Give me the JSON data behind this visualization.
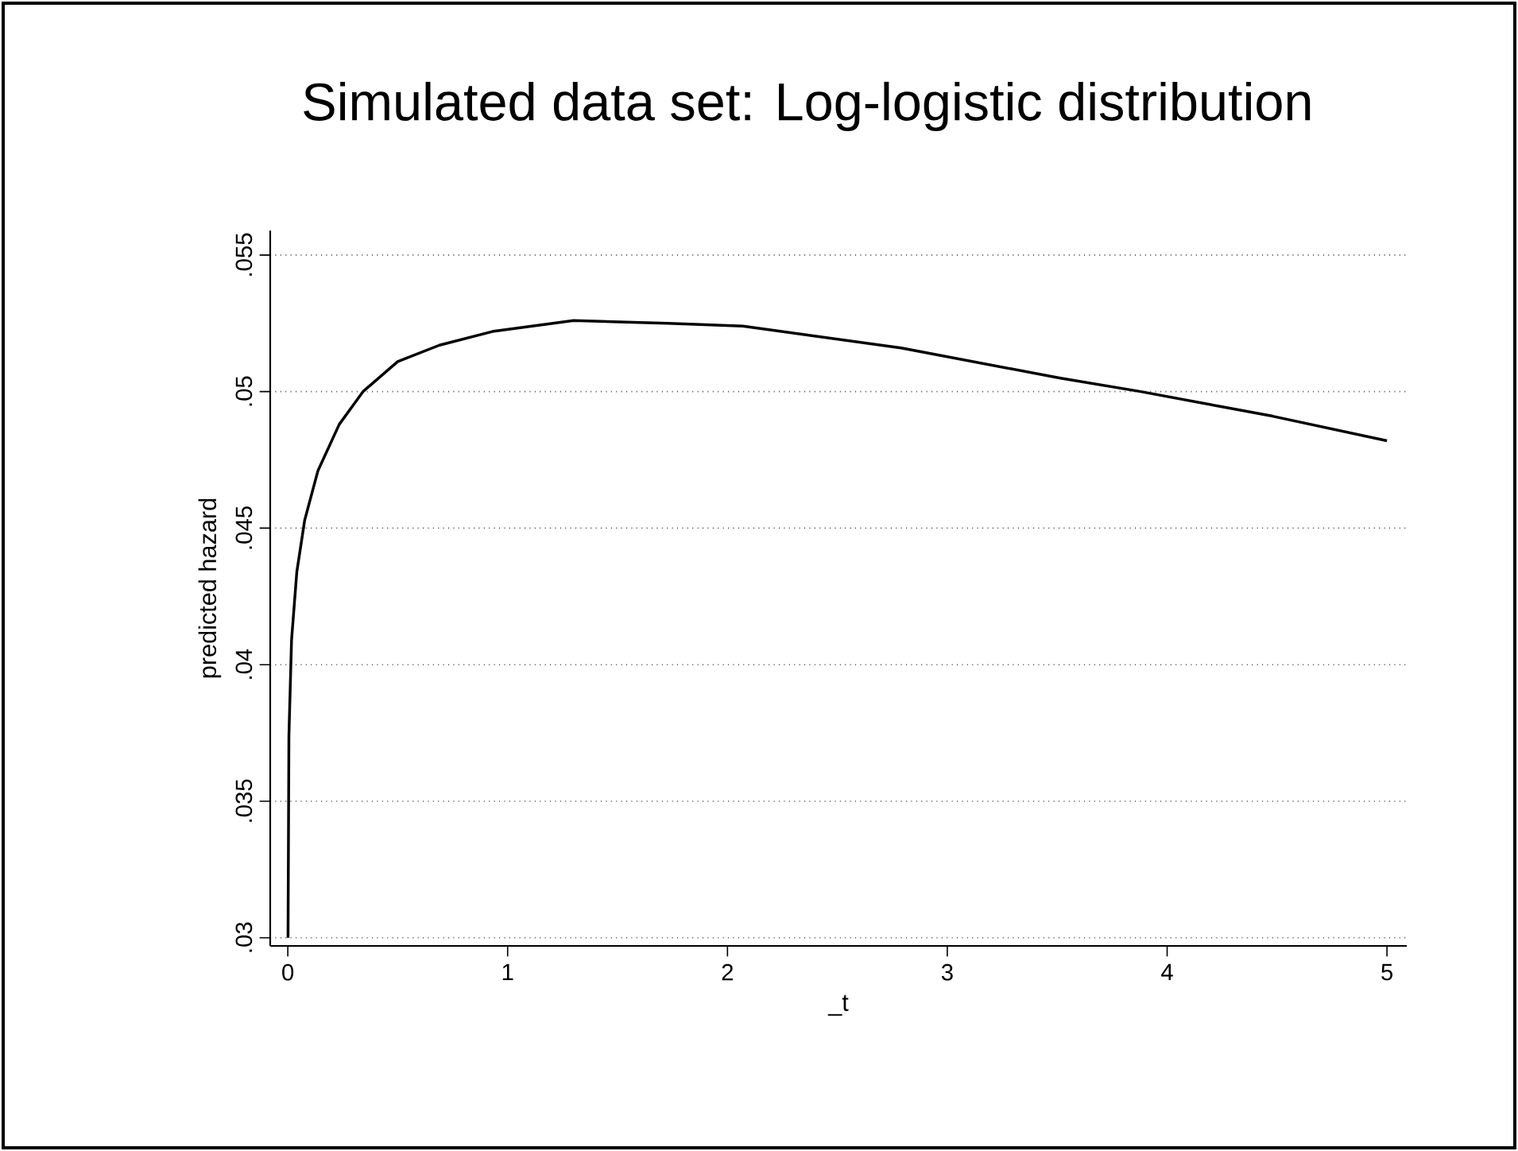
{
  "chart_data": {
    "type": "line",
    "title": "Simulated data set: Log-logistic distribution",
    "xlabel": "_t",
    "ylabel": "predicted hazard",
    "x": [
      0.001,
      0.005,
      0.017,
      0.041,
      0.077,
      0.137,
      0.234,
      0.342,
      0.5,
      0.69,
      0.93,
      1.3,
      1.73,
      2.07,
      2.79,
      3.51,
      3.88,
      4.48,
      5.0
    ],
    "series": [
      {
        "color": "#000000",
        "values": [
          0.03,
          0.0374,
          0.0409,
          0.0434,
          0.0453,
          0.0471,
          0.0488,
          0.05,
          0.0511,
          0.0517,
          0.0522,
          0.0526,
          0.0525,
          0.0524,
          0.0516,
          0.0505,
          0.05,
          0.0491,
          0.0482
        ]
      }
    ],
    "xlim": [
      -0.08,
      5.09
    ],
    "ylim": [
      0.0297,
      0.0559
    ],
    "xticks": [
      0,
      1,
      2,
      3,
      4,
      5
    ],
    "yticks": [
      {
        "value": 0.03,
        "label": ".03"
      },
      {
        "value": 0.035,
        "label": ".035"
      },
      {
        "value": 0.04,
        "label": ".04"
      },
      {
        "value": 0.045,
        "label": ".045"
      },
      {
        "value": 0.05,
        "label": ".05"
      },
      {
        "value": 0.055,
        "label": ".055"
      }
    ],
    "grid": "y",
    "line_style": "solid",
    "marker": "none"
  }
}
